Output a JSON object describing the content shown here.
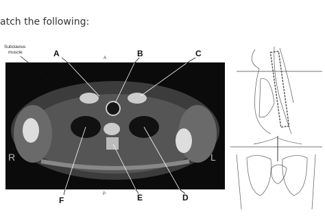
{
  "header": {
    "title": "atch the following:"
  },
  "figure": {
    "annotation": [
      "Subclavius",
      "muscle"
    ],
    "orientation": {
      "anterior": "A",
      "posterior": "P",
      "right": "R",
      "left": "L"
    },
    "labels": [
      "A",
      "B",
      "C",
      "D",
      "E",
      "F"
    ]
  }
}
